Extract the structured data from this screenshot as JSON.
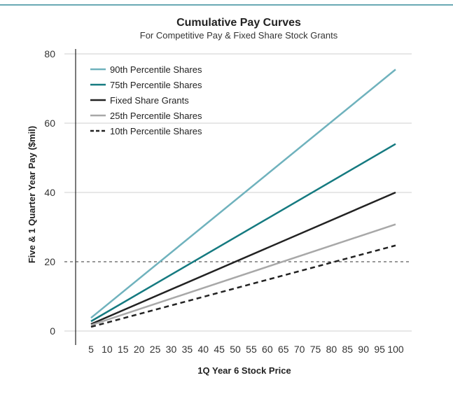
{
  "chart_data": {
    "type": "line",
    "title": "Cumulative Pay Curves",
    "subtitle": "For Competitive Pay & Fixed Share Stock Grants",
    "xlabel": "1Q Year 6 Stock Price",
    "ylabel": "Five & 1 Quarter Year Pay ($mil)",
    "x_ticks": [
      5,
      10,
      15,
      20,
      25,
      30,
      35,
      40,
      45,
      50,
      55,
      60,
      65,
      70,
      75,
      80,
      85,
      90,
      95,
      100
    ],
    "y_ticks": [
      0,
      20,
      40,
      60,
      80
    ],
    "xlim": [
      5,
      100
    ],
    "ylim": [
      0,
      80
    ],
    "reference_line_y": 20,
    "grid": "horizontal",
    "legend_position": "top-left",
    "series": [
      {
        "name": "90th Percentile Shares",
        "color": "#6fb2bd",
        "style": "solid",
        "x": [
          5,
          100
        ],
        "y": [
          3.8,
          75.5
        ]
      },
      {
        "name": "75th Percentile Shares",
        "color": "#157a80",
        "style": "solid",
        "x": [
          5,
          100
        ],
        "y": [
          2.8,
          54.0
        ]
      },
      {
        "name": "Fixed Share Grants",
        "color": "#222222",
        "style": "solid",
        "x": [
          5,
          100
        ],
        "y": [
          2.0,
          40.0
        ]
      },
      {
        "name": "25th Percentile Shares",
        "color": "#a8a8a8",
        "style": "solid",
        "x": [
          5,
          100
        ],
        "y": [
          1.7,
          30.8
        ]
      },
      {
        "name": "10th Percentile Shares",
        "color": "#222222",
        "style": "dashed",
        "x": [
          5,
          100
        ],
        "y": [
          1.2,
          24.7
        ]
      }
    ]
  }
}
